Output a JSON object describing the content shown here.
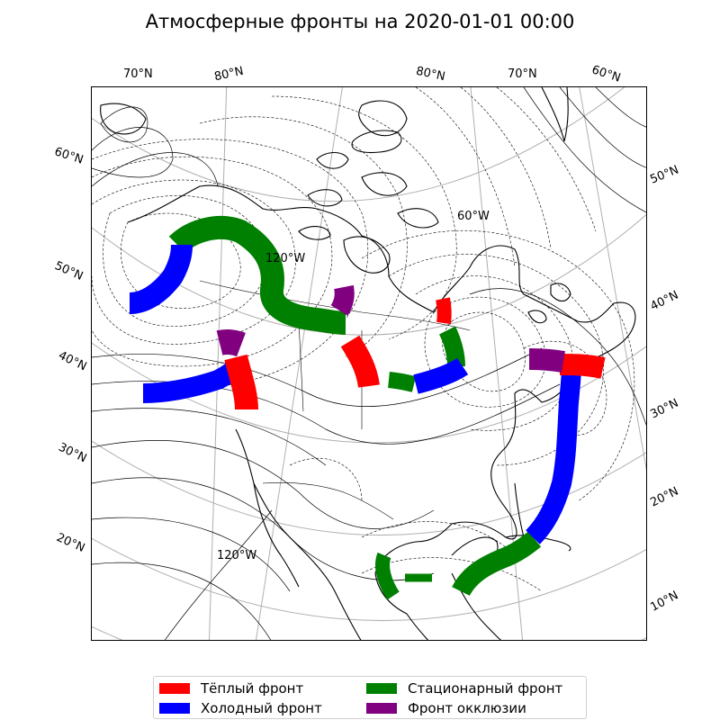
{
  "title": "Атмосферные фронты на 2020-01-01 00:00",
  "lat_labels_left": [
    "60°N",
    "50°N",
    "40°N",
    "30°N",
    "20°N"
  ],
  "lat_labels_right": [
    "50°N",
    "40°N",
    "30°N",
    "20°N",
    "10°N"
  ],
  "lon_labels_top": [
    "70°N",
    "80°N",
    "80°N",
    "70°N",
    "60°N"
  ],
  "inner_labels": [
    "60°W",
    "120°W",
    "120°W"
  ],
  "legend": {
    "items": [
      {
        "label": "Тёплый фронт",
        "color": "#ff0000"
      },
      {
        "label": "Холодный фронт",
        "color": "#0000ff"
      },
      {
        "label": "Стационарный фронт",
        "color": "#008000"
      },
      {
        "label": "Фронт окклюзии",
        "color": "#800080"
      }
    ]
  },
  "colors": {
    "warm": "#ff0000",
    "cold": "#0000ff",
    "stationary": "#008000",
    "occluded": "#800080",
    "coast": "#000000",
    "isobar": "#000000",
    "grid": "#b0b0b0"
  }
}
